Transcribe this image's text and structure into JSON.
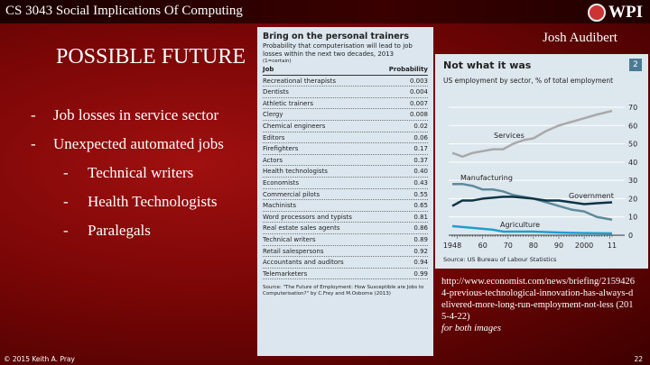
{
  "header": {
    "course": "CS 3043 Social Implications Of Computing",
    "logo_text": "WPI",
    "author": "Josh Audibert"
  },
  "title": "POSSIBLE FUTURE",
  "bullets": [
    {
      "level": 1,
      "text": "Job losses in service sector"
    },
    {
      "level": 1,
      "text": "Unexpected automated jobs"
    },
    {
      "level": 2,
      "text": "Technical writers"
    },
    {
      "level": 2,
      "text": "Health Technologists"
    },
    {
      "level": 2,
      "text": "Paralegals"
    }
  ],
  "table": {
    "title": "Bring on the personal trainers",
    "subtitle": "Probability that computerisation will lead to job losses within the next two decades, 2013",
    "note": "(1=certain)",
    "headers": [
      "Job",
      "Probability"
    ],
    "rows": [
      [
        "Recreational therapists",
        "0.003"
      ],
      [
        "Dentists",
        "0.004"
      ],
      [
        "Athletic trainers",
        "0.007"
      ],
      [
        "Clergy",
        "0.008"
      ],
      [
        "Chemical engineers",
        "0.02"
      ],
      [
        "Editors",
        "0.06"
      ],
      [
        "Firefighters",
        "0.17"
      ],
      [
        "Actors",
        "0.37"
      ],
      [
        "Health technologists",
        "0.40"
      ],
      [
        "Economists",
        "0.43"
      ],
      [
        "Commercial pilots",
        "0.55"
      ],
      [
        "Machinists",
        "0.65"
      ],
      [
        "Word processors and typists",
        "0.81"
      ],
      [
        "Real estate sales agents",
        "0.86"
      ],
      [
        "Technical writers",
        "0.89"
      ],
      [
        "Retail salespersons",
        "0.92"
      ],
      [
        "Accountants and auditors",
        "0.94"
      ],
      [
        "Telemarketers",
        "0.99"
      ]
    ],
    "source": "Source: \"The Future of Employment: How Susceptible are Jobs to Computerisation?\" by C.Frey and M.Osborne (2013)"
  },
  "chart_data": {
    "type": "line",
    "title": "Not what it was",
    "badge": "2",
    "subtitle": "US employment by sector, % of total employment",
    "source": "Source: US Bureau of Labour Statistics",
    "xlim": [
      1948,
      2011
    ],
    "ylim": [
      0,
      70
    ],
    "xticks": [
      1948,
      1960,
      1970,
      1980,
      1990,
      2000,
      2011
    ],
    "xtick_labels": [
      "1948",
      "60",
      "70",
      "80",
      "90",
      "2000",
      "11"
    ],
    "yticks": [
      0,
      10,
      20,
      30,
      40,
      50,
      60,
      70
    ],
    "grid": true,
    "series": [
      {
        "name": "Services",
        "color": "#a9a9a9",
        "x": [
          1948,
          1952,
          1956,
          1960,
          1964,
          1968,
          1972,
          1976,
          1980,
          1985,
          1990,
          1995,
          2000,
          2005,
          2011
        ],
        "y": [
          45,
          43,
          45,
          46,
          47,
          47,
          50,
          52,
          53,
          57,
          60,
          62,
          64,
          66,
          68
        ]
      },
      {
        "name": "Manufacturing",
        "color": "#5f8a9c",
        "x": [
          1948,
          1952,
          1956,
          1960,
          1964,
          1968,
          1972,
          1976,
          1980,
          1985,
          1990,
          1995,
          2000,
          2005,
          2011
        ],
        "y": [
          28,
          28,
          27,
          25,
          25,
          24,
          22,
          21,
          20,
          18,
          16,
          14,
          13,
          10,
          8.5
        ]
      },
      {
        "name": "Government",
        "color": "#0d3346",
        "x": [
          1948,
          1952,
          1956,
          1960,
          1964,
          1968,
          1972,
          1976,
          1980,
          1985,
          1990,
          1995,
          2000,
          2005,
          2011
        ],
        "y": [
          16,
          19,
          19,
          20,
          20.5,
          21,
          21,
          20.5,
          20,
          19,
          19,
          18,
          17,
          17.5,
          18
        ]
      },
      {
        "name": "Agriculture",
        "color": "#1e9ed0",
        "x": [
          1948,
          1952,
          1956,
          1960,
          1964,
          1968,
          1972,
          1976,
          1980,
          1985,
          1990,
          1995,
          2000,
          2005,
          2011
        ],
        "y": [
          5,
          4.5,
          4,
          3.5,
          3,
          2,
          2,
          2,
          2,
          1.7,
          1.5,
          1.3,
          1.2,
          1.1,
          1
        ]
      }
    ]
  },
  "credit": {
    "link": "http://www.economist.com/news/briefing/21594264-previous-technological-innovation-has-always-delivered-more-long-run-employment-not-less (2015-4-22)",
    "note": "for both images"
  },
  "footer": {
    "copyright": "© 2015 Keith A. Pray",
    "page": "22"
  }
}
